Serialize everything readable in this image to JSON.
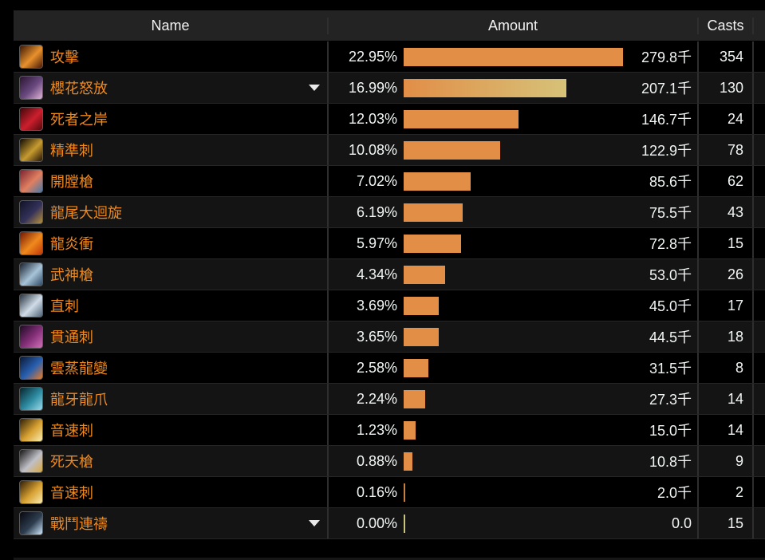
{
  "table": {
    "columns": {
      "name": "Name",
      "amount": "Amount",
      "casts": "Casts"
    },
    "max_percent": 22.95,
    "bar_color_default": "#e28e47",
    "accent_name_color": "#f0891d",
    "rows": [
      {
        "name": "攻擊",
        "icon": "attack-icon",
        "icon_colors": [
          "#3a1606",
          "#e8912c",
          "#4a1a06"
        ],
        "percent": "22.95%",
        "pct": 22.95,
        "amount": "279.8千",
        "casts": "354",
        "expandable": false,
        "bar_colors": [
          "#e28e47"
        ]
      },
      {
        "name": "櫻花怒放",
        "icon": "cherry-blossom-icon",
        "icon_colors": [
          "#2a1432",
          "#6b4a80",
          "#e0b4d6"
        ],
        "percent": "16.99%",
        "pct": 16.99,
        "amount": "207.1千",
        "casts": "130",
        "expandable": true,
        "bar_colors": [
          "#e28e47",
          "#d6c278"
        ]
      },
      {
        "name": "死者之岸",
        "icon": "dead-shore-icon",
        "icon_colors": [
          "#3c060a",
          "#cc1f2d",
          "#54080c"
        ],
        "percent": "12.03%",
        "pct": 12.03,
        "amount": "146.7千",
        "casts": "24",
        "expandable": false,
        "bar_colors": [
          "#e28e47"
        ]
      },
      {
        "name": "精準刺",
        "icon": "precise-stab-icon",
        "icon_colors": [
          "#0d0803",
          "#c79b30",
          "#241405"
        ],
        "percent": "10.08%",
        "pct": 10.08,
        "amount": "122.9千",
        "casts": "78",
        "expandable": false,
        "bar_colors": [
          "#e28e47"
        ]
      },
      {
        "name": "開膛槍",
        "icon": "ripper-spear-icon",
        "icon_colors": [
          "#7a2030",
          "#e08060",
          "#4878a8"
        ],
        "percent": "7.02%",
        "pct": 7.02,
        "amount": "85.6千",
        "casts": "62",
        "expandable": false,
        "bar_colors": [
          "#e28e47"
        ]
      },
      {
        "name": "龍尾大迴旋",
        "icon": "tail-sweep-icon",
        "icon_colors": [
          "#101226",
          "#34325a",
          "#b89038"
        ],
        "percent": "6.19%",
        "pct": 6.19,
        "amount": "75.5千",
        "casts": "43",
        "expandable": false,
        "bar_colors": [
          "#e28e47"
        ]
      },
      {
        "name": "龍炎衝",
        "icon": "flame-rush-icon",
        "icon_colors": [
          "#701505",
          "#f08a1c",
          "#c03808"
        ],
        "percent": "5.97%",
        "pct": 5.97,
        "amount": "72.8千",
        "casts": "15",
        "expandable": false,
        "bar_colors": [
          "#e28e47"
        ]
      },
      {
        "name": "武神槍",
        "icon": "war-god-spear-icon",
        "icon_colors": [
          "#16202e",
          "#a8c4d8",
          "#2e4a66"
        ],
        "percent": "4.34%",
        "pct": 4.34,
        "amount": "53.0千",
        "casts": "26",
        "expandable": false,
        "bar_colors": [
          "#e28e47"
        ]
      },
      {
        "name": "直刺",
        "icon": "straight-stab-icon",
        "icon_colors": [
          "#26303e",
          "#d0dde8",
          "#4e6478"
        ],
        "percent": "3.69%",
        "pct": 3.69,
        "amount": "45.0千",
        "casts": "17",
        "expandable": false,
        "bar_colors": [
          "#e28e47"
        ]
      },
      {
        "name": "貫通刺",
        "icon": "pierce-stab-icon",
        "icon_colors": [
          "#1c0a22",
          "#86307a",
          "#d070b8"
        ],
        "percent": "3.65%",
        "pct": 3.65,
        "amount": "44.5千",
        "casts": "18",
        "expandable": false,
        "bar_colors": [
          "#e28e47"
        ]
      },
      {
        "name": "雲蒸龍變",
        "icon": "cloud-dragon-icon",
        "icon_colors": [
          "#0a1834",
          "#2860b0",
          "#e87c2c"
        ],
        "percent": "2.58%",
        "pct": 2.58,
        "amount": "31.5千",
        "casts": "8",
        "expandable": false,
        "bar_colors": [
          "#e28e47"
        ]
      },
      {
        "name": "龍牙龍爪",
        "icon": "fang-claw-icon",
        "icon_colors": [
          "#06242c",
          "#2e8ca2",
          "#9adcec"
        ],
        "percent": "2.24%",
        "pct": 2.24,
        "amount": "27.3千",
        "casts": "14",
        "expandable": false,
        "bar_colors": [
          "#e28e47"
        ]
      },
      {
        "name": "音速刺",
        "icon": "sonic-stab-icon",
        "icon_colors": [
          "#2e1d06",
          "#d8a232",
          "#f8ecb0"
        ],
        "percent": "1.23%",
        "pct": 1.23,
        "amount": "15.0千",
        "casts": "14",
        "expandable": false,
        "bar_colors": [
          "#e28e47"
        ]
      },
      {
        "name": "死天槍",
        "icon": "death-sky-spear-icon",
        "icon_colors": [
          "#141414",
          "#c0c0c8",
          "#d8a840"
        ],
        "percent": "0.88%",
        "pct": 0.88,
        "amount": "10.8千",
        "casts": "9",
        "expandable": false,
        "bar_colors": [
          "#e28e47"
        ]
      },
      {
        "name": "音速刺",
        "icon": "sonic-stab-icon",
        "icon_colors": [
          "#2e1d06",
          "#d8a232",
          "#f8ecb0"
        ],
        "percent": "0.16%",
        "pct": 0.16,
        "amount": "2.0千",
        "casts": "2",
        "expandable": false,
        "bar_colors": [
          "#c9803f"
        ]
      },
      {
        "name": "戰鬥連禱",
        "icon": "battle-litany-icon",
        "icon_colors": [
          "#07070e",
          "#2e3e50",
          "#cfeafc"
        ],
        "percent": "0.00%",
        "pct": 0.0,
        "amount": "0.0",
        "casts": "15",
        "expandable": true,
        "bar_colors": [
          "#c9c47c"
        ]
      }
    ]
  }
}
